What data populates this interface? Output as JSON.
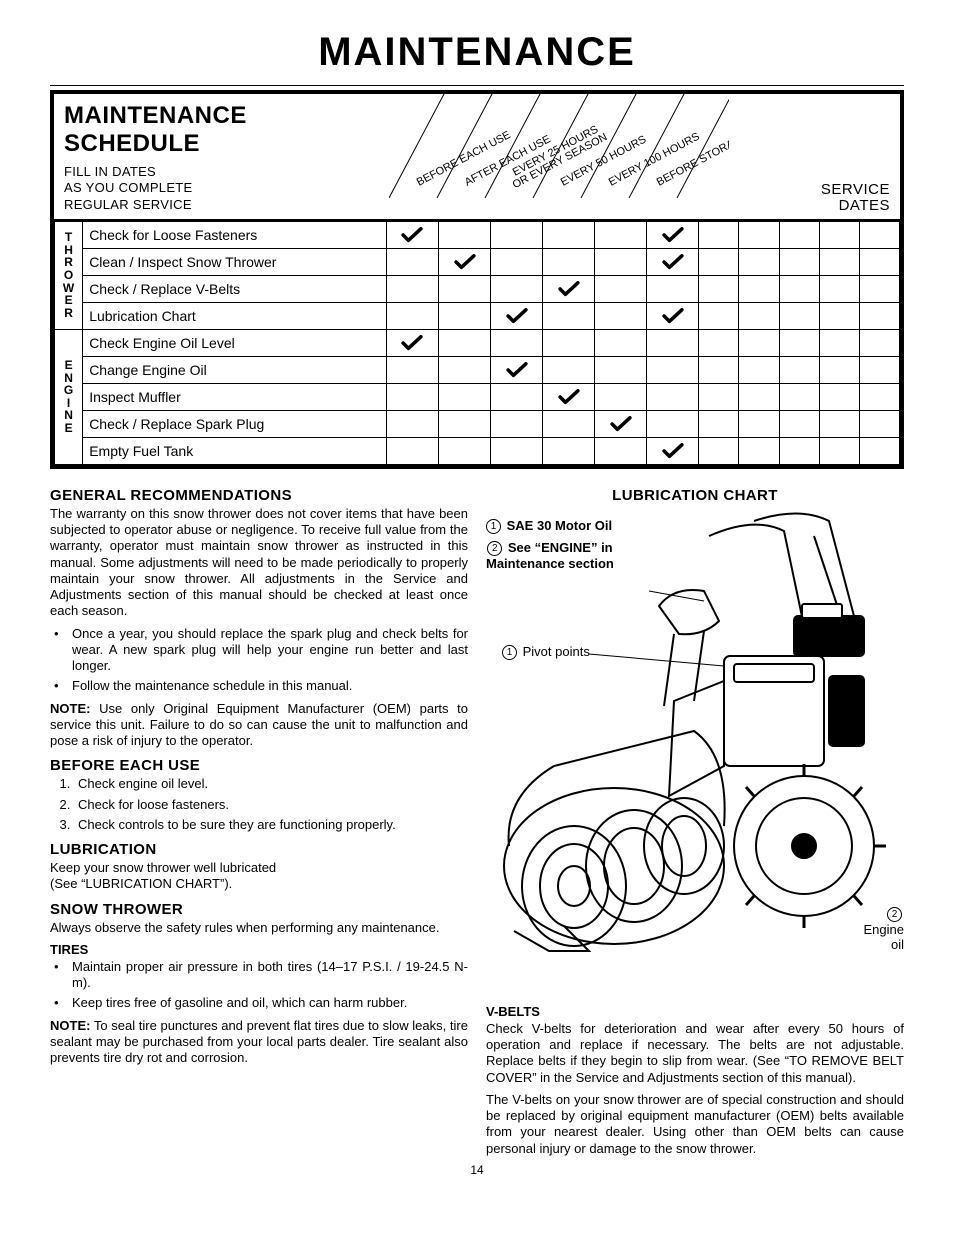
{
  "page_title": "MAINTENANCE",
  "schedule": {
    "title": "MAINTENANCE SCHEDULE",
    "subtitle_lines": [
      "FILL IN DATES",
      "AS YOU COMPLETE",
      "REGULAR SERVICE"
    ],
    "interval_headers": [
      "BEFORE EACH USE",
      "AFTER EACH USE",
      "EVERY 25 HOURS OR EVERY SEASON",
      "EVERY 50 HOURS",
      "EVERY 100 HOURS",
      "BEFORE STORAGE"
    ],
    "service_dates_label": "SERVICE\nDATES",
    "categories": [
      {
        "label": "THROWER",
        "rows": 4
      },
      {
        "label": "ENGINE",
        "rows": 5
      }
    ],
    "tasks": [
      {
        "name": "Check for Loose Fasteners",
        "checks": [
          true,
          false,
          false,
          false,
          false,
          true
        ]
      },
      {
        "name": "Clean / Inspect Snow Thrower",
        "checks": [
          false,
          true,
          false,
          false,
          false,
          true
        ]
      },
      {
        "name": "Check / Replace V-Belts",
        "checks": [
          false,
          false,
          false,
          true,
          false,
          false
        ]
      },
      {
        "name": "Lubrication Chart",
        "checks": [
          false,
          false,
          true,
          false,
          false,
          true
        ]
      },
      {
        "name": "Check Engine Oil Level",
        "checks": [
          true,
          false,
          false,
          false,
          false,
          false
        ]
      },
      {
        "name": "Change Engine Oil",
        "checks": [
          false,
          false,
          true,
          false,
          false,
          false
        ]
      },
      {
        "name": "Inspect Muffler",
        "checks": [
          false,
          false,
          false,
          true,
          false,
          false
        ]
      },
      {
        "name": "Check / Replace Spark Plug",
        "checks": [
          false,
          false,
          false,
          false,
          true,
          false
        ]
      },
      {
        "name": "Empty Fuel Tank",
        "checks": [
          false,
          false,
          false,
          false,
          false,
          true
        ]
      }
    ],
    "service_date_cols": 5,
    "colors": {
      "border": "#000000",
      "background": "#ffffff",
      "tick": "#000000"
    }
  },
  "left_col": {
    "general_title": "GENERAL RECOMMENDATIONS",
    "general_para": "The warranty on this snow thrower does not cover items that have been subjected to operator abuse or negligence.  To receive full value from the warranty, operator must maintain snow thrower as instructed in this manual.  Some adjustments will need to be made periodically to properly maintain your snow thrower.  All adjustments in the Service and Adjustments section of this manual should be checked at least once each season.",
    "general_bullets": [
      "Once a year, you should replace the spark plug and check belts for wear.  A new spark plug will help your engine run better and last longer.",
      "Follow the maintenance schedule in this manual."
    ],
    "general_note_label": "NOTE:",
    "general_note": "Use only Original Equipment Manufacturer (OEM) parts to service this unit.  Failure to do so can cause the unit to malfunction and pose a risk of injury to the operator.",
    "before_title": "BEFORE EACH USE",
    "before_items": [
      "Check engine oil level.",
      "Check for loose fasteners.",
      "Check controls to be sure they are functioning properly."
    ],
    "lub_title": "LUBRICATION",
    "lub_para": "Keep your snow thrower well lubricated\n(See “LUBRICATION CHART”).",
    "snow_title": "SNOW THROWER",
    "snow_para": "Always observe the safety rules when performing any maintenance.",
    "tires_label": "TIRES",
    "tires_bullets": [
      "Maintain proper air pressure in both tires (14–17 P.S.I. / 19-24.5 N-m).",
      "Keep tires free of gasoline and oil, which can harm rubber."
    ],
    "tires_note_label": "NOTE:",
    "tires_note": "To seal tire punctures and prevent flat tires due to slow leaks, tire sealant may be purchased from your local parts dealer. Tire sealant also prevents tire dry rot and corrosion."
  },
  "right_col": {
    "chart_title": "LUBRICATION CHART",
    "legend_1_num": "1",
    "legend_1_text": "SAE 30 Motor Oil",
    "legend_2_num": "2",
    "legend_2_text_a": "See “ENGINE” in",
    "legend_2_text_b": "Maintenance section",
    "callout_1_num": "1",
    "callout_1_text": "Pivot points",
    "callout_2_num": "2",
    "callout_2_text_a": "Engine",
    "callout_2_text_b": "oil",
    "vbelts_label": "V-BELTS",
    "vbelts_p1": "Check V-belts for deterioration and wear after every 50 hours of operation and replace if necessary. The belts are not adjustable. Replace belts if they begin to slip from wear. (See “TO REMOVE BELT COVER” in the Service and Adjustments section of this manual).",
    "vbelts_p2": "The V-belts on your snow thrower are of special construction and should be replaced by original equipment manufacturer (OEM) belts available from your nearest dealer. Using other than OEM belts can cause personal injury or damage to the snow thrower."
  },
  "page_number": "14"
}
